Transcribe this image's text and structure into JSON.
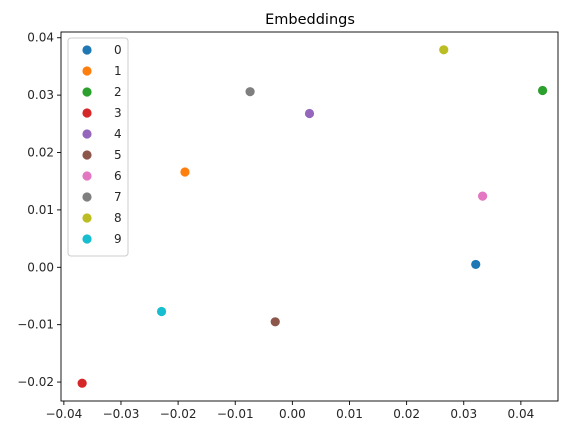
{
  "chart_data": {
    "type": "scatter",
    "title": "Embeddings",
    "xlabel": "",
    "ylabel": "",
    "xlim": [
      -0.0405,
      0.0465
    ],
    "ylim": [
      -0.0233,
      0.041
    ],
    "xticks": [
      -0.04,
      -0.03,
      -0.02,
      -0.01,
      0.0,
      0.01,
      0.02,
      0.03,
      0.04
    ],
    "xtick_labels": [
      "−0.04",
      "−0.03",
      "−0.02",
      "−0.01",
      "0.00",
      "0.01",
      "0.02",
      "0.03",
      "0.04"
    ],
    "yticks": [
      -0.02,
      -0.01,
      0.0,
      0.01,
      0.02,
      0.03,
      0.04
    ],
    "ytick_labels": [
      "−0.02",
      "−0.01",
      "0.00",
      "0.01",
      "0.02",
      "0.03",
      "0.04"
    ],
    "grid": false,
    "legend_position": "upper-left",
    "series": [
      {
        "name": "0",
        "color": "#1f77b4",
        "x": [
          0.0321
        ],
        "y": [
          0.0005
        ]
      },
      {
        "name": "1",
        "color": "#ff7f0e",
        "x": [
          -0.0188
        ],
        "y": [
          0.0166
        ]
      },
      {
        "name": "2",
        "color": "#2ca02c",
        "x": [
          0.0438
        ],
        "y": [
          0.0308
        ]
      },
      {
        "name": "3",
        "color": "#d62728",
        "x": [
          -0.0368
        ],
        "y": [
          -0.0202
        ]
      },
      {
        "name": "4",
        "color": "#9467bd",
        "x": [
          0.003
        ],
        "y": [
          0.0268
        ]
      },
      {
        "name": "5",
        "color": "#8c564b",
        "x": [
          -0.003
        ],
        "y": [
          -0.0095
        ]
      },
      {
        "name": "6",
        "color": "#e377c2",
        "x": [
          0.0333
        ],
        "y": [
          0.0124
        ]
      },
      {
        "name": "7",
        "color": "#7f7f7f",
        "x": [
          -0.0074
        ],
        "y": [
          0.0306
        ]
      },
      {
        "name": "8",
        "color": "#bcbd22",
        "x": [
          0.0265
        ],
        "y": [
          0.0379
        ]
      },
      {
        "name": "9",
        "color": "#17becf",
        "x": [
          -0.0229
        ],
        "y": [
          -0.0077
        ]
      }
    ]
  }
}
